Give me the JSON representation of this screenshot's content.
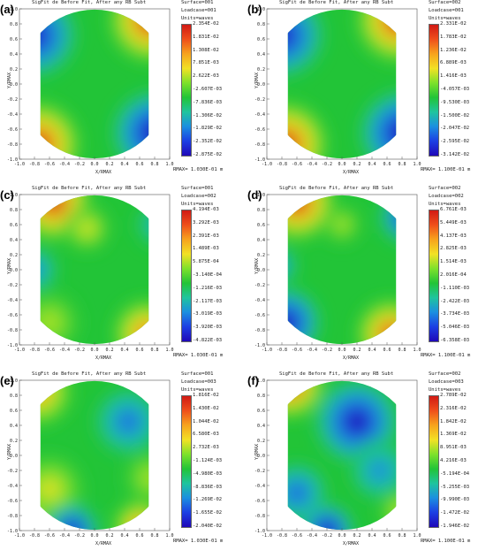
{
  "chart_data": [
    {
      "type": "heatmap",
      "label": "(a)",
      "title": "SigFit de Before Fit, After any RB Subt",
      "surface": "Surface=001",
      "loadcase": "Loadcase=001",
      "units": "Units=waves",
      "rmax": "RMAX= 1.030E-01 m",
      "xlabel": "X/RMAX",
      "ylabel": "Y/RMAX",
      "xlim": [
        -1.0,
        1.0
      ],
      "ylim": [
        -1.0,
        1.0
      ],
      "xticks": [
        "-1.0",
        "-0.8",
        "-0.6",
        "-0.4",
        "-0.2",
        "0.0",
        "0.2",
        "0.4",
        "0.6",
        "0.8",
        "1.0"
      ],
      "yticks": [
        "1.0",
        "0.8",
        "0.6",
        "0.4",
        "0.2",
        "0.0",
        "-0.2",
        "-0.4",
        "-0.6",
        "-0.8",
        "-1.0"
      ],
      "colorbar_ticks": [
        "2.354E-02",
        "1.831E-02",
        "1.308E-02",
        "7.851E-03",
        "2.622E-03",
        "-2.607E-03",
        "-7.836E-03",
        "-1.306E-02",
        "-1.829E-02",
        "-2.352E-02",
        "-2.875E-02"
      ],
      "blobs": [
        {
          "x": 0.75,
          "y": 0.85,
          "r": 0.55,
          "level": 1.0
        },
        {
          "x": -0.75,
          "y": -0.8,
          "r": 0.55,
          "level": 1.0
        },
        {
          "x": -0.8,
          "y": 0.65,
          "r": 0.55,
          "level": -0.9
        },
        {
          "x": 0.8,
          "y": -0.65,
          "r": 0.55,
          "level": -1.0
        }
      ]
    },
    {
      "type": "heatmap",
      "label": "(b)",
      "title": "SigFit de Before Fit, After any RB Subt",
      "surface": "Surface=002",
      "loadcase": "Loadcase=001",
      "units": "Units=waves",
      "rmax": "RMAX= 1.100E-01 m",
      "xlabel": "X/RMAX",
      "ylabel": "Y/RMAX",
      "xlim": [
        -1.0,
        1.0
      ],
      "ylim": [
        -1.0,
        1.0
      ],
      "xticks": [
        "-1.0",
        "-0.8",
        "-0.6",
        "-0.4",
        "-0.2",
        "0.0",
        "0.2",
        "0.4",
        "0.6",
        "0.8",
        "1.0"
      ],
      "yticks": [
        "1.0",
        "0.8",
        "0.6",
        "0.4",
        "0.2",
        "0.0",
        "-0.2",
        "-0.4",
        "-0.6",
        "-0.8",
        "-1.0"
      ],
      "colorbar_ticks": [
        "2.331E-02",
        "1.783E-02",
        "1.236E-02",
        "6.889E-03",
        "1.416E-03",
        "-4.057E-03",
        "-9.530E-03",
        "-1.500E-02",
        "-2.047E-02",
        "-2.595E-02",
        "-3.142E-02"
      ],
      "blobs": [
        {
          "x": 0.75,
          "y": 0.85,
          "r": 0.55,
          "level": 1.0
        },
        {
          "x": -0.75,
          "y": -0.8,
          "r": 0.55,
          "level": 1.0
        },
        {
          "x": -0.8,
          "y": 0.65,
          "r": 0.55,
          "level": -0.9
        },
        {
          "x": 0.8,
          "y": -0.65,
          "r": 0.55,
          "level": -1.0
        }
      ]
    },
    {
      "type": "heatmap",
      "label": "(c)",
      "title": "SigFit de Before Fit, After any RB Subt",
      "surface": "Surface=001",
      "loadcase": "Loadcase=002",
      "units": "Units=waves",
      "rmax": "RMAX= 1.030E-01 m",
      "xlabel": "X/RMAX",
      "ylabel": "Y/RMAX",
      "xlim": [
        -1.0,
        1.0
      ],
      "ylim": [
        -1.0,
        1.0
      ],
      "xticks": [
        "-1.0",
        "-0.8",
        "-0.6",
        "-0.4",
        "-0.2",
        "0.0",
        "0.2",
        "0.4",
        "0.6",
        "0.8",
        "1.0"
      ],
      "yticks": [
        "1.0",
        "0.8",
        "0.6",
        "0.4",
        "0.2",
        "0.0",
        "-0.2",
        "-0.4",
        "-0.6",
        "-0.8",
        "-1.0"
      ],
      "colorbar_ticks": [
        "4.194E-03",
        "3.292E-03",
        "2.391E-03",
        "1.489E-03",
        "5.875E-04",
        "-3.140E-04",
        "-1.216E-03",
        "-2.117E-03",
        "-3.019E-03",
        "-3.920E-03",
        "-4.822E-03"
      ],
      "blobs": [
        {
          "x": -0.55,
          "y": 0.9,
          "r": 0.5,
          "level": 1.0
        },
        {
          "x": 0.7,
          "y": -0.85,
          "r": 0.45,
          "level": 0.8
        },
        {
          "x": -0.8,
          "y": 0.0,
          "r": 0.3,
          "level": -0.5
        },
        {
          "x": -0.1,
          "y": 0.55,
          "r": 0.3,
          "level": 0.45
        },
        {
          "x": 0.85,
          "y": 0.6,
          "r": 0.3,
          "level": -0.35
        },
        {
          "x": -0.6,
          "y": -0.7,
          "r": 0.4,
          "level": 0.35
        }
      ]
    },
    {
      "type": "heatmap",
      "label": "(d)",
      "title": "SigFit de Before Fit, After any RB Subt",
      "surface": "Surface=002",
      "loadcase": "Loadcase=002",
      "units": "Units=waves",
      "rmax": "RMAX= 1.100E-01 m",
      "xlabel": "X/RMAX",
      "ylabel": "Y/RMAX",
      "xlim": [
        -1.0,
        1.0
      ],
      "ylim": [
        -1.0,
        1.0
      ],
      "xticks": [
        "-1.0",
        "-0.8",
        "-0.6",
        "-0.4",
        "-0.2",
        "0.0",
        "0.2",
        "0.4",
        "0.6",
        "0.8",
        "1.0"
      ],
      "yticks": [
        "1.0",
        "0.8",
        "0.6",
        "0.4",
        "0.2",
        "0.0",
        "-0.2",
        "-0.4",
        "-0.6",
        "-0.8",
        "-1.0"
      ],
      "colorbar_ticks": [
        "6.761E-03",
        "5.449E-03",
        "4.137E-03",
        "2.825E-03",
        "1.514E-03",
        "2.016E-04",
        "-1.110E-03",
        "-2.422E-03",
        "-3.734E-03",
        "-5.046E-03",
        "-6.358E-03"
      ],
      "blobs": [
        {
          "x": -0.6,
          "y": 0.9,
          "r": 0.5,
          "level": 1.0
        },
        {
          "x": 0.65,
          "y": -0.85,
          "r": 0.45,
          "level": 0.9
        },
        {
          "x": -0.75,
          "y": -0.7,
          "r": 0.45,
          "level": -1.0
        },
        {
          "x": 0.85,
          "y": 0.7,
          "r": 0.35,
          "level": -0.8
        },
        {
          "x": -0.85,
          "y": 0.05,
          "r": 0.25,
          "level": -0.5
        },
        {
          "x": 0.0,
          "y": 0.6,
          "r": 0.25,
          "level": 0.35
        }
      ]
    },
    {
      "type": "heatmap",
      "label": "(e)",
      "title": "SigFit de Before Fit, After any RB Subt",
      "surface": "Surface=001",
      "loadcase": "Loadcase=003",
      "units": "Units=waves",
      "rmax": "RMAX= 1.030E-01 m",
      "xlabel": "X/RMAX",
      "ylabel": "Y/RMAX",
      "xlim": [
        -1.0,
        1.0
      ],
      "ylim": [
        -1.0,
        1.0
      ],
      "xticks": [
        "-1.0",
        "-0.8",
        "-0.6",
        "-0.4",
        "-0.2",
        "0.0",
        "0.2",
        "0.4",
        "0.6",
        "0.8",
        "1.0"
      ],
      "yticks": [
        "1.0",
        "0.8",
        "0.6",
        "0.4",
        "0.2",
        "0.0",
        "-0.2",
        "-0.4",
        "-0.6",
        "-0.8",
        "-1.0"
      ],
      "colorbar_ticks": [
        "1.816E-02",
        "1.430E-02",
        "1.044E-02",
        "6.580E-03",
        "2.732E-03",
        "-1.124E-03",
        "-4.980E-03",
        "-8.836E-03",
        "-1.269E-02",
        "-1.655E-02",
        "-2.040E-02"
      ],
      "blobs": [
        {
          "x": -0.75,
          "y": 0.85,
          "r": 0.45,
          "level": 0.7
        },
        {
          "x": 0.45,
          "y": 0.45,
          "r": 0.45,
          "level": -0.55
        },
        {
          "x": -0.6,
          "y": -0.45,
          "r": 0.45,
          "level": 0.45
        },
        {
          "x": 0.75,
          "y": -0.3,
          "r": 0.35,
          "level": 0.35
        },
        {
          "x": -0.3,
          "y": -1.0,
          "r": 0.35,
          "level": -0.9
        },
        {
          "x": 0.6,
          "y": -0.95,
          "r": 0.35,
          "level": 0.75
        },
        {
          "x": -0.85,
          "y": -0.85,
          "r": 0.25,
          "level": 0.5
        }
      ]
    },
    {
      "type": "heatmap",
      "label": "(f)",
      "title": "SigFit de Before Fit, After any RB Subt",
      "surface": "Surface=002",
      "loadcase": "Loadcase=003",
      "units": "Units=waves",
      "rmax": "RMAX= 1.100E-01 m",
      "xlabel": "X/RMAX",
      "ylabel": "Y/RMAX",
      "xlim": [
        -1.0,
        1.0
      ],
      "ylim": [
        -1.0,
        1.0
      ],
      "xticks": [
        "-1.0",
        "-0.8",
        "-0.6",
        "-0.4",
        "-0.2",
        "0.0",
        "0.2",
        "0.4",
        "0.6",
        "0.8",
        "1.0"
      ],
      "yticks": [
        "1.0",
        "0.8",
        "0.6",
        "0.4",
        "0.2",
        "0.0",
        "-0.2",
        "-0.4",
        "-0.6",
        "-0.8",
        "-1.0"
      ],
      "colorbar_ticks": [
        "2.789E-02",
        "2.316E-02",
        "1.842E-02",
        "1.369E-02",
        "8.951E-03",
        "4.216E-03",
        "-5.194E-04",
        "-5.255E-03",
        "-9.990E-03",
        "-1.472E-02",
        "-1.946E-02"
      ],
      "blobs": [
        {
          "x": -0.7,
          "y": 0.95,
          "r": 0.45,
          "level": 1.0
        },
        {
          "x": 0.2,
          "y": 0.45,
          "r": 0.55,
          "level": -0.95
        },
        {
          "x": -0.6,
          "y": -0.5,
          "r": 0.4,
          "level": -0.6
        },
        {
          "x": 0.5,
          "y": -0.2,
          "r": 0.4,
          "level": -0.45
        },
        {
          "x": -0.2,
          "y": -1.0,
          "r": 0.35,
          "level": -1.0
        },
        {
          "x": 0.8,
          "y": -0.75,
          "r": 0.3,
          "level": 0.4
        }
      ]
    }
  ]
}
